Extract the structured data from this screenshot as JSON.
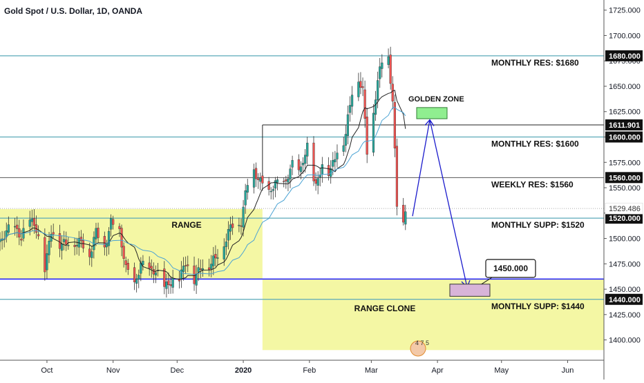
{
  "chart_data": {
    "type": "candlestick",
    "title": "Gold Spot / U.S. Dollar, 1D, OANDA",
    "ylim": [
      1380,
      1735
    ],
    "y_ticks": [
      1400,
      1425,
      1450,
      1475,
      1500,
      1525,
      1550,
      1575,
      1600,
      1625,
      1650,
      1675,
      1700,
      1725
    ],
    "y_tick_labels": [
      "1400.000",
      "1425.000",
      "1450.000",
      "1475.000",
      "1500.000",
      "1525.000",
      "1550.000",
      "1575.000",
      "1600.000",
      "1625.000",
      "1650.000",
      "1675.000",
      "1700.000",
      "1725.000"
    ],
    "x_start": "2019-09-09",
    "x_end": "2020-06-18",
    "x_ticks": [
      {
        "label": "Oct",
        "date": "2019-10-01"
      },
      {
        "label": "Nov",
        "date": "2019-11-01"
      },
      {
        "label": "Dec",
        "date": "2019-12-01"
      },
      {
        "label": "2020",
        "date": "2020-01-01",
        "bold": true
      },
      {
        "label": "Feb",
        "date": "2020-02-01"
      },
      {
        "label": "Mar",
        "date": "2020-03-01"
      },
      {
        "label": "Apr",
        "date": "2020-04-01"
      },
      {
        "label": "May",
        "date": "2020-05-01"
      },
      {
        "label": "Jun",
        "date": "2020-06-01"
      }
    ],
    "closes": [
      [
        "2019-09-09",
        1498
      ],
      [
        "2019-09-12",
        1505
      ],
      [
        "2019-09-16",
        1513
      ],
      [
        "2019-09-19",
        1498
      ],
      [
        "2019-09-23",
        1522
      ],
      [
        "2019-09-26",
        1507
      ],
      [
        "2019-09-30",
        1473
      ],
      [
        "2019-10-03",
        1505
      ],
      [
        "2019-10-07",
        1497
      ],
      [
        "2019-10-10",
        1493
      ],
      [
        "2019-10-14",
        1498
      ],
      [
        "2019-10-17",
        1494
      ],
      [
        "2019-10-21",
        1486
      ],
      [
        "2019-10-24",
        1504
      ],
      [
        "2019-10-28",
        1493
      ],
      [
        "2019-10-31",
        1513
      ],
      [
        "2019-11-04",
        1509
      ],
      [
        "2019-11-07",
        1468
      ],
      [
        "2019-11-11",
        1456
      ],
      [
        "2019-11-14",
        1472
      ],
      [
        "2019-11-18",
        1471
      ],
      [
        "2019-11-21",
        1465
      ],
      [
        "2019-11-25",
        1455
      ],
      [
        "2019-11-28",
        1454
      ],
      [
        "2019-12-02",
        1463
      ],
      [
        "2019-12-05",
        1474
      ],
      [
        "2019-12-09",
        1462
      ],
      [
        "2019-12-12",
        1469
      ],
      [
        "2019-12-16",
        1476
      ],
      [
        "2019-12-19",
        1478
      ],
      [
        "2019-12-23",
        1497
      ],
      [
        "2019-12-27",
        1512
      ],
      [
        "2019-12-31",
        1517
      ],
      [
        "2020-01-03",
        1552
      ],
      [
        "2020-01-06",
        1568
      ],
      [
        "2020-01-09",
        1553
      ],
      [
        "2020-01-13",
        1547
      ],
      [
        "2020-01-16",
        1552
      ],
      [
        "2020-01-21",
        1556
      ],
      [
        "2020-01-24",
        1571
      ],
      [
        "2020-01-28",
        1568
      ],
      [
        "2020-01-31",
        1589
      ],
      [
        "2020-02-04",
        1551
      ],
      [
        "2020-02-07",
        1570
      ],
      [
        "2020-02-11",
        1567
      ],
      [
        "2020-02-14",
        1584
      ],
      [
        "2020-02-18",
        1603
      ],
      [
        "2020-02-21",
        1643
      ],
      [
        "2020-02-24",
        1660
      ],
      [
        "2020-02-26",
        1643
      ],
      [
        "2020-02-28",
        1585
      ],
      [
        "2020-03-03",
        1641
      ],
      [
        "2020-03-06",
        1674
      ],
      [
        "2020-03-09",
        1680
      ],
      [
        "2020-03-11",
        1634
      ],
      [
        "2020-03-13",
        1530
      ],
      [
        "2020-03-16",
        1515
      ],
      [
        "2020-03-17",
        1529
      ]
    ],
    "hlines": [
      {
        "value": 1680,
        "label": "1680.000",
        "tag": "MONTHLY RES: $1680",
        "color": "#5aa9b8",
        "width": 1.2
      },
      {
        "value": 1611.9,
        "label": "1611.901",
        "tag": "",
        "color": "#222222",
        "width": 1,
        "start": "2020-01-10"
      },
      {
        "value": 1600,
        "label": "1600.000",
        "tag": "MONTHLY RES: $1600",
        "color": "#5aa9b8",
        "width": 1.2
      },
      {
        "value": 1560,
        "label": "1560.000",
        "tag": "WEEKLY RES: $1560",
        "color": "#555555",
        "width": 1
      },
      {
        "value": 1520,
        "label": "1520.000",
        "tag": "MONTHLY SUPP: $1520",
        "color": "#5aa9b8",
        "width": 1.2
      },
      {
        "value": 1460,
        "label": "",
        "tag": "",
        "color": "#1a1aff",
        "width": 1.6
      },
      {
        "value": 1440,
        "label": "1440.000",
        "tag": "MONTHLY SUPP: $1440",
        "color": "#5aa9b8",
        "width": 1.2
      }
    ],
    "price_label": "1529.486",
    "annotations": {
      "range_label": "RANGE",
      "range_clone_label": "RANGE CLONE",
      "golden_zone_label": "GOLDEN ZONE",
      "target_label": "1450.000",
      "watermark_text": "4 7 5"
    },
    "colors": {
      "up": "#26a69a",
      "down": "#ef5350",
      "range_fill": "#f4f7a4",
      "golden_fill": "#90ee90",
      "target_fill": "#d8b4d8",
      "arrow": "#1a1acc",
      "ma_fast": "#222222",
      "ma_slow": "#4aa3d4"
    }
  }
}
